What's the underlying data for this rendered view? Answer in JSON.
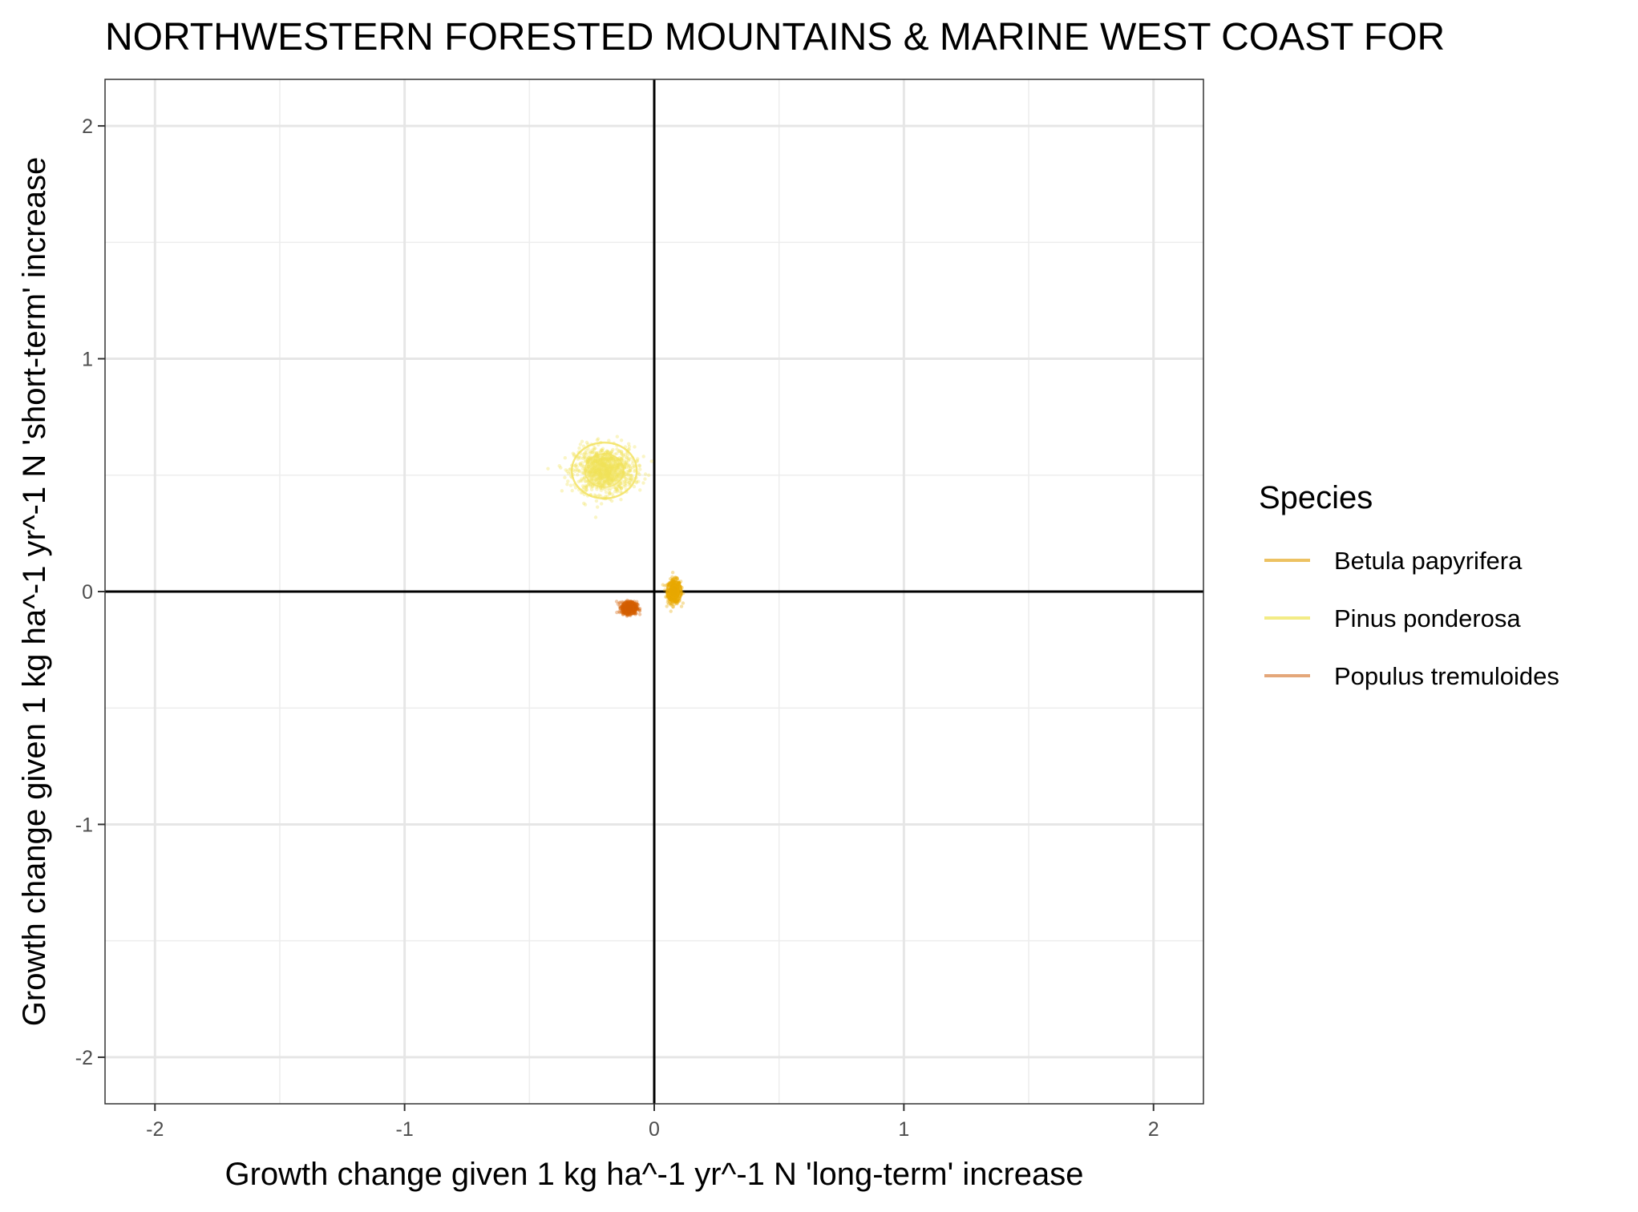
{
  "chart_data": {
    "type": "scatter",
    "title": "NORTHWESTERN FORESTED MOUNTAINS & MARINE WEST COAST FOR",
    "xlabel": "Growth change given 1 kg ha^-1 yr^-1 N 'long-term' increase",
    "ylabel": "Growth change given 1 kg ha^-1 yr^-1 N 'short-term' increase",
    "xlim": [
      -2.2,
      2.2
    ],
    "ylim": [
      -2.2,
      2.2
    ],
    "x_ticks": [
      -2,
      -1,
      0,
      1,
      2
    ],
    "x_tick_labels": [
      "-2",
      "-1",
      "0",
      "1",
      "2"
    ],
    "y_ticks": [
      -2,
      -1,
      0,
      1,
      2
    ],
    "y_tick_labels": [
      "-2",
      "-1",
      "0",
      "1",
      "2"
    ],
    "minor_gridlines": [
      -1.5,
      -0.5,
      0.5,
      1.5
    ],
    "grid": true,
    "reference_lines": {
      "x": 0,
      "y": 0
    },
    "legend_title": "Species",
    "legend_position": "right",
    "series": [
      {
        "name": "Betula papyrifera",
        "color": "#E9A800",
        "legend_color": "#EDC262",
        "center": [
          0.08,
          0.0
        ],
        "spread": [
          0.013,
          0.025
        ],
        "ellipse_radii": [
          0.03,
          0.045
        ]
      },
      {
        "name": "Pinus ponderosa",
        "color": "#F2E15A",
        "legend_color": "#F3EC86",
        "center": [
          -0.2,
          0.52
        ],
        "spread": [
          0.06,
          0.05
        ],
        "ellipse_radii": [
          0.13,
          0.12
        ]
      },
      {
        "name": "Populus tremuloides",
        "color": "#D45F00",
        "legend_color": "#E4A77A",
        "center": [
          -0.1,
          -0.07
        ],
        "spread": [
          0.015,
          0.013
        ],
        "ellipse_radii": [
          0.03,
          0.03
        ]
      }
    ]
  }
}
